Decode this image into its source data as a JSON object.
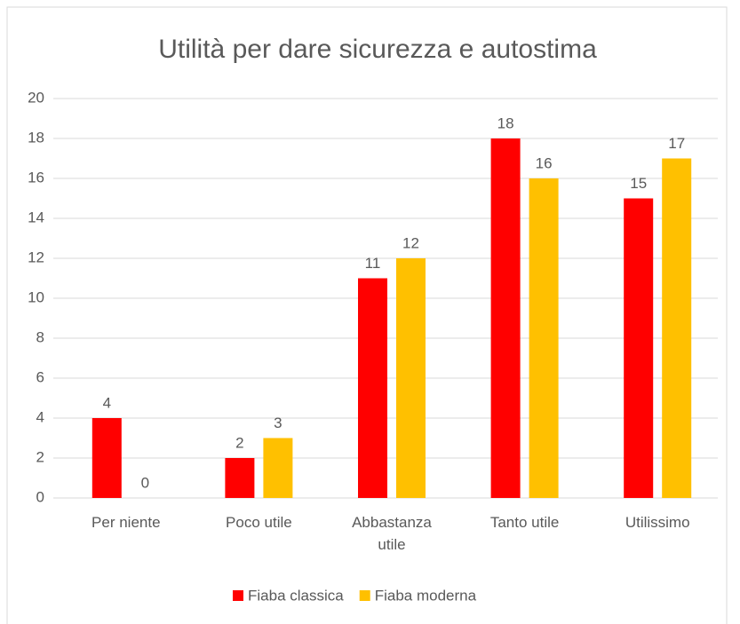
{
  "chart_data": {
    "type": "bar",
    "title": "Utilità per dare sicurezza e autostima",
    "categories": [
      "Per niente",
      "Poco utile",
      "Abbastanza utile",
      "Tanto utile",
      "Utilissimo"
    ],
    "series": [
      {
        "name": "Fiaba classica",
        "color": "#ff0000",
        "values": [
          4,
          2,
          11,
          18,
          15
        ]
      },
      {
        "name": "Fiaba moderna",
        "color": "#ffc000",
        "values": [
          0,
          3,
          12,
          16,
          17
        ]
      }
    ],
    "ylim": [
      0,
      20
    ],
    "yticks": [
      0,
      2,
      4,
      6,
      8,
      10,
      12,
      14,
      16,
      18,
      20
    ],
    "grid": true,
    "legend": "bottom"
  }
}
